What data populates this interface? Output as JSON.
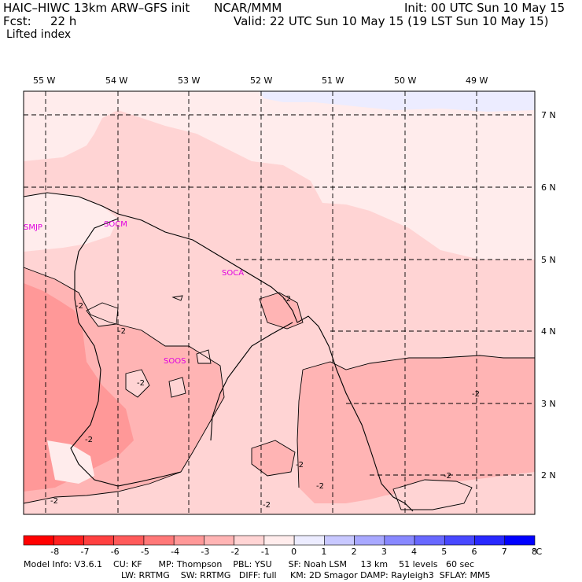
{
  "header": {
    "model_title": "HAIC–HIWC 13km ARW–GFS init",
    "org": "NCAR/MMM",
    "init": "Init: 00 UTC Sun 10 May 15",
    "fcst_label": "Fcst:",
    "fcst_value": "22 h",
    "valid": "Valid: 22 UTC Sun 10 May 15 (19 LST Sun 10 May 15)",
    "field": "Lifted index"
  },
  "map": {
    "lon_labels": [
      "55 W",
      "54 W",
      "53 W",
      "52 W",
      "51 W",
      "50 W",
      "49 W"
    ],
    "lat_labels": [
      "7 N",
      "6 N",
      "5 N",
      "4 N",
      "3 N",
      "2 N"
    ],
    "stations": [
      "SMJP",
      "SOCM",
      "SOCA",
      "SOOS"
    ],
    "contour_labels": [
      "-2",
      "-2",
      "-2",
      "-2",
      "-2",
      "-2",
      "-2",
      "-2",
      "-2",
      "-2",
      "-2"
    ]
  },
  "colorbar": {
    "ticks": [
      "-8",
      "-7",
      "-6",
      "-5",
      "-4",
      "-3",
      "-2",
      "-1",
      "0",
      "1",
      "2",
      "3",
      "4",
      "5",
      "6",
      "7",
      "8"
    ],
    "unit": "°C",
    "colors": [
      "#ff0000",
      "#ff2020",
      "#ff4040",
      "#ff5a5a",
      "#ff7878",
      "#ff9898",
      "#ffb4b4",
      "#ffd4d4",
      "#ffecec",
      "#ececff",
      "#c8c8ff",
      "#a8a8ff",
      "#8888ff",
      "#6868ff",
      "#4848ff",
      "#2828ff",
      "#0000ff"
    ]
  },
  "footer": {
    "line1": "Model Info: V3.6.1    CU: KF      MP: Thompson    PBL: YSU      SF: Noah LSM     13 km    51 levels   60 sec",
    "line2": "LW: RRTMG    SW: RRTMG   DIFF: full     KM: 2D Smagor DAMP: Rayleigh3  SFLAY: MM5"
  }
}
